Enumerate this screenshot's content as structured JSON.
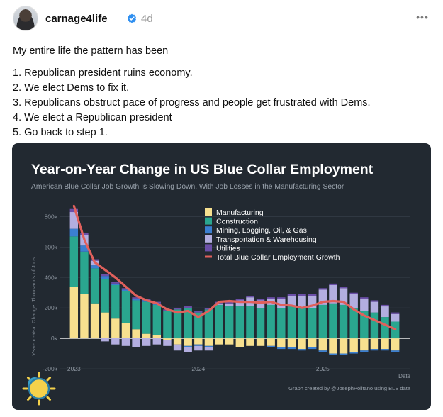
{
  "post": {
    "username": "carnage4life",
    "timestamp": "4d",
    "more_label": "•••",
    "intro": "My entire life the pattern has been",
    "steps": [
      "1. Republican president ruins economy.",
      "2. We elect Dems to fix it.",
      "3. Republicans obstruct pace of progress and people get frustrated with Dems.",
      "4. We elect a Republican president",
      "5. Go back to step 1."
    ],
    "icons": {
      "verified": "verified-badge-icon",
      "more": "more-options-icon"
    }
  },
  "chart_data": {
    "type": "bar",
    "title": "Year-on-Year Change in US Blue Collar Employment",
    "subtitle": "American Blue Collar Job Growth Is Slowing Down, With Job Losses in the Manufacturing Sector",
    "ylabel": "Year-on-Year Change, Thousands of Jobs",
    "xlabel": "Date",
    "credit": "Graph created by @JosephPolitano using BLS data",
    "ylim": [
      -200,
      900
    ],
    "yticks": [
      -200,
      0,
      200,
      400,
      600,
      800
    ],
    "ytick_labels": [
      "-200k",
      "0k",
      "200k",
      "400k",
      "600k",
      "800k"
    ],
    "xticks": [
      {
        "index": 0,
        "label": "2023"
      },
      {
        "index": 12,
        "label": "2024"
      },
      {
        "index": 24,
        "label": "2025"
      }
    ],
    "months": 32,
    "grid": true,
    "legend_position": "top-center",
    "colors": {
      "Manufacturing": "#f7e08f",
      "Construction": "#2aa68f",
      "Mining, Logging, Oil, & Gas": "#3b7fd1",
      "Transportation & Warehousing": "#b3aee0",
      "Utilities": "#6b4fa8",
      "Total Blue Collar Employment Growth": "#e0605c",
      "background": "#222931",
      "text": "#ffffff"
    },
    "series": [
      {
        "name": "Manufacturing",
        "values": [
          340,
          290,
          230,
          170,
          130,
          100,
          60,
          30,
          20,
          -10,
          -40,
          -50,
          -40,
          -50,
          -40,
          -40,
          -60,
          -50,
          -50,
          -50,
          -60,
          -60,
          -70,
          -60,
          -80,
          -100,
          -100,
          -90,
          -80,
          -70,
          -70,
          -80
        ]
      },
      {
        "name": "Construction",
        "values": [
          330,
          280,
          230,
          220,
          220,
          210,
          190,
          210,
          200,
          180,
          190,
          200,
          170,
          190,
          220,
          210,
          210,
          210,
          200,
          220,
          200,
          210,
          200,
          200,
          220,
          230,
          220,
          200,
          180,
          170,
          140,
          110
        ]
      },
      {
        "name": "Mining, Logging, Oil, & Gas",
        "values": [
          50,
          40,
          20,
          20,
          10,
          10,
          10,
          10,
          10,
          0,
          0,
          -10,
          -10,
          -10,
          0,
          0,
          0,
          0,
          0,
          -10,
          -10,
          -10,
          -10,
          -10,
          -10,
          -10,
          -10,
          -10,
          -10,
          -10,
          -10,
          -10
        ]
      },
      {
        "name": "Transportation & Warehousing",
        "values": [
          110,
          70,
          30,
          -20,
          -40,
          -50,
          -60,
          -50,
          -40,
          -40,
          -40,
          -30,
          -30,
          -20,
          10,
          20,
          40,
          60,
          50,
          40,
          60,
          70,
          80,
          80,
          100,
          120,
          110,
          90,
          80,
          70,
          70,
          50
        ]
      },
      {
        "name": "Utilities",
        "values": [
          20,
          15,
          10,
          10,
          10,
          10,
          10,
          10,
          10,
          10,
          10,
          10,
          10,
          10,
          10,
          10,
          10,
          10,
          10,
          10,
          10,
          10,
          10,
          10,
          10,
          10,
          10,
          10,
          10,
          10,
          10,
          10
        ]
      },
      {
        "name": "Total Blue Collar Employment Growth",
        "type": "line",
        "values": [
          870,
          650,
          500,
          450,
          400,
          340,
          280,
          250,
          230,
          190,
          170,
          180,
          140,
          180,
          240,
          245,
          240,
          240,
          235,
          240,
          220,
          215,
          200,
          215,
          240,
          245,
          240,
          190,
          150,
          120,
          90,
          60
        ]
      }
    ]
  }
}
